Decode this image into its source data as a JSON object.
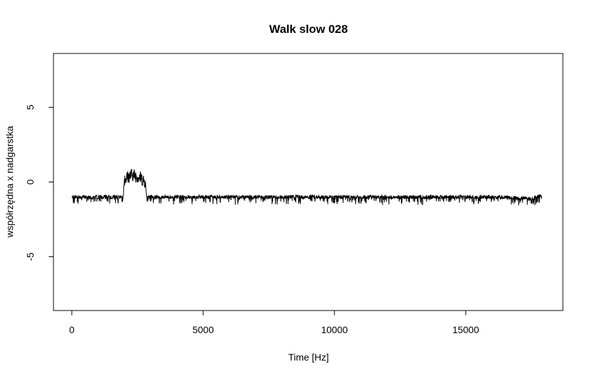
{
  "chart_data": {
    "type": "line",
    "title": "Walk slow 028",
    "xlabel": "Time [Hz]",
    "ylabel": "współrzędna x nadgarstka",
    "xlim": [
      -700,
      18700
    ],
    "ylim": [
      -8.6,
      8.6
    ],
    "xticks": [
      0,
      5000,
      10000,
      15000
    ],
    "xtick_labels": [
      "0",
      "5000",
      "10000",
      "15000"
    ],
    "yticks": [
      -5,
      0,
      5
    ],
    "ytick_labels": [
      "-5",
      "0",
      "5"
    ],
    "grid": false,
    "line_color": "#000000",
    "series": [
      {
        "x": [
          0,
          1000,
          1950,
          2000,
          2300,
          2600,
          2800,
          2850,
          4000,
          6000,
          8000,
          10000,
          11000,
          12000,
          14000,
          16000,
          17500,
          17900
        ],
        "y": [
          -1.0,
          -1.0,
          -1.0,
          0.2,
          0.5,
          0.3,
          0.0,
          -1.0,
          -1.0,
          -1.0,
          -1.0,
          -1.0,
          -1.0,
          -1.0,
          -1.0,
          -1.0,
          -1.1,
          -0.9
        ]
      }
    ]
  }
}
